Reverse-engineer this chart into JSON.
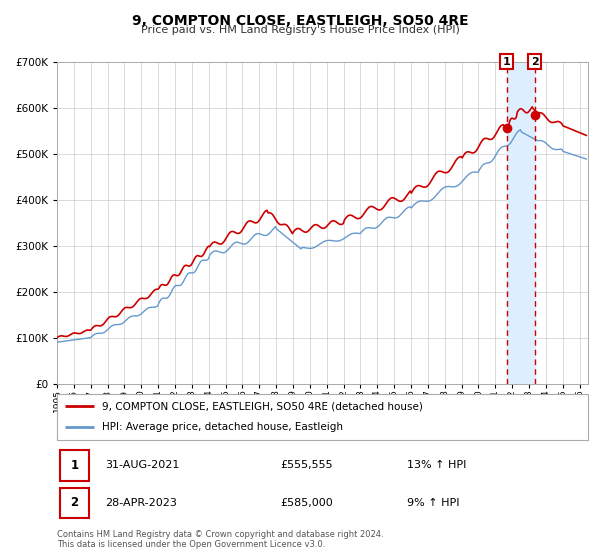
{
  "title": "9, COMPTON CLOSE, EASTLEIGH, SO50 4RE",
  "subtitle": "Price paid vs. HM Land Registry's House Price Index (HPI)",
  "legend_line1": "9, COMPTON CLOSE, EASTLEIGH, SO50 4RE (detached house)",
  "legend_line2": "HPI: Average price, detached house, Eastleigh",
  "footnote1": "Contains HM Land Registry data © Crown copyright and database right 2024.",
  "footnote2": "This data is licensed under the Open Government Licence v3.0.",
  "sale1_date": "31-AUG-2021",
  "sale1_price": "£555,555",
  "sale1_hpi": "13% ↑ HPI",
  "sale2_date": "28-APR-2023",
  "sale2_price": "£585,000",
  "sale2_hpi": "9% ↑ HPI",
  "red_color": "#cc0000",
  "blue_color": "#6699cc",
  "vline_color": "#cc0000",
  "bg_highlight_color": "#ddeeff",
  "hatch_color": "#cccccc",
  "ylim": [
    0,
    700000
  ],
  "xlim_start": 1995.0,
  "xlim_end": 2026.5,
  "sale1_x": 2021.667,
  "sale2_x": 2023.333,
  "sale1_y": 555555,
  "sale2_y": 585000
}
